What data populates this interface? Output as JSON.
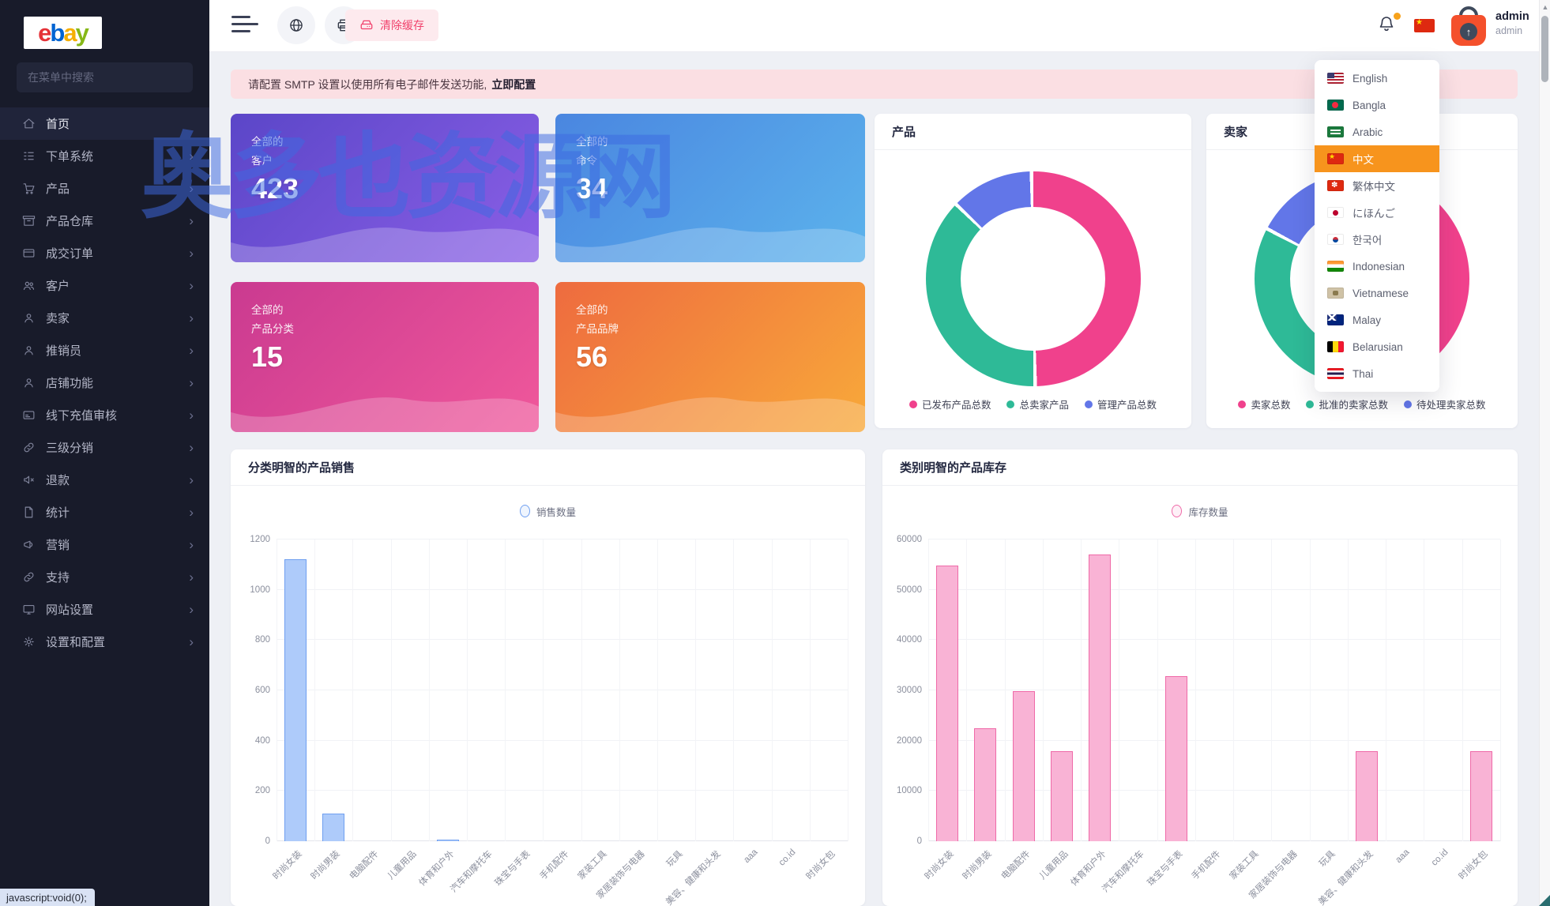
{
  "app": {
    "logo_text": "ebay",
    "watermark": "奥多也资源网",
    "status_bar": "javascript:void(0);"
  },
  "sidebar": {
    "search_placeholder": "在菜单中搜索",
    "items": [
      {
        "label": "首页",
        "icon": "home",
        "chevron": false,
        "active": true
      },
      {
        "label": "下单系统",
        "icon": "order-system",
        "chevron": true,
        "active": false
      },
      {
        "label": "产品",
        "icon": "products",
        "chevron": true,
        "active": false
      },
      {
        "label": "产品仓库",
        "icon": "warehouse",
        "chevron": true,
        "active": false
      },
      {
        "label": "成交订单",
        "icon": "orders",
        "chevron": true,
        "active": false
      },
      {
        "label": "客户",
        "icon": "customers",
        "chevron": true,
        "active": false
      },
      {
        "label": "卖家",
        "icon": "seller",
        "chevron": true,
        "active": false
      },
      {
        "label": "推销员",
        "icon": "promoter",
        "chevron": true,
        "active": false
      },
      {
        "label": "店铺功能",
        "icon": "shop",
        "chevron": true,
        "active": false
      },
      {
        "label": "线下充值审核",
        "icon": "offline-recharge",
        "chevron": true,
        "active": false
      },
      {
        "label": "三级分销",
        "icon": "distribution",
        "chevron": true,
        "active": false
      },
      {
        "label": "退款",
        "icon": "refund",
        "chevron": true,
        "active": false
      },
      {
        "label": "统计",
        "icon": "statistics",
        "chevron": true,
        "active": false
      },
      {
        "label": "营销",
        "icon": "marketing",
        "chevron": true,
        "active": false
      },
      {
        "label": "支持",
        "icon": "support",
        "chevron": true,
        "active": false
      },
      {
        "label": "网站设置",
        "icon": "website",
        "chevron": true,
        "active": false
      },
      {
        "label": "设置和配置",
        "icon": "settings",
        "chevron": true,
        "active": false
      }
    ]
  },
  "topbar": {
    "clear_cache_label": "清除缓存",
    "user": {
      "name": "admin",
      "role": "admin"
    }
  },
  "banner": {
    "text": "请配置 SMTP 设置以使用所有电子邮件发送功能,",
    "link": "立即配置"
  },
  "stat_cards": [
    {
      "prefix": "全部的",
      "label": "客户",
      "value": "423",
      "variant": "purple"
    },
    {
      "prefix": "全部的",
      "label": "命令",
      "value": "34",
      "variant": "blue"
    },
    {
      "prefix": "全部的",
      "label": "产品分类",
      "value": "15",
      "variant": "pink"
    },
    {
      "prefix": "全部的",
      "label": "产品品牌",
      "value": "56",
      "variant": "orange"
    }
  ],
  "language_menu": {
    "active_color": "#f7941d",
    "items": [
      {
        "label": "English",
        "flag": "us",
        "active": false
      },
      {
        "label": "Bangla",
        "flag": "bd",
        "active": false
      },
      {
        "label": "Arabic",
        "flag": "sa",
        "active": false
      },
      {
        "label": "中文",
        "flag": "cn",
        "active": true
      },
      {
        "label": "繁体中文",
        "flag": "hk",
        "active": false
      },
      {
        "label": "にほんご",
        "flag": "jp",
        "active": false
      },
      {
        "label": "한국어",
        "flag": "kr",
        "active": false
      },
      {
        "label": "Indonesian",
        "flag": "in",
        "active": false
      },
      {
        "label": "Vietnamese",
        "flag": "vn",
        "active": false
      },
      {
        "label": "Malay",
        "flag": "my",
        "active": false
      },
      {
        "label": "Belarusian",
        "flag": "be",
        "active": false
      },
      {
        "label": "Thai",
        "flag": "th",
        "active": false
      }
    ]
  },
  "chart_data": [
    {
      "type": "donut",
      "title": "产品",
      "legend_position": "bottom",
      "segments": [
        {
          "label": "已发布产品总数",
          "pct": 50,
          "color": "#f0418c"
        },
        {
          "label": "总卖家产品",
          "pct": 37.5,
          "color": "#2eba97"
        },
        {
          "label": "管理产品总数",
          "pct": 12.5,
          "color": "#6276e8"
        }
      ]
    },
    {
      "type": "donut",
      "title": "卖家",
      "legend_position": "bottom",
      "segments": [
        {
          "label": "卖家总数",
          "pct": 54,
          "color": "#f0418c"
        },
        {
          "label": "批准的卖家总数",
          "pct": 29,
          "color": "#2eba97"
        },
        {
          "label": "待处理卖家总数",
          "pct": 17,
          "color": "#6276e8"
        }
      ]
    },
    {
      "type": "bar",
      "title": "分类明智的产品销售",
      "legend": "销售数量",
      "bar_fill": "#aecbfa",
      "bar_border": "#6f9ff0",
      "categories": [
        "时尚女装",
        "时尚男装",
        "电脑配件",
        "儿童用品",
        "体育和户外",
        "汽车和摩托车",
        "珠宝与手表",
        "手机配件",
        "家装工具",
        "家居装饰与电器",
        "玩具",
        "美容、健康和头发",
        "aaa",
        "co.id",
        "时尚女包"
      ],
      "values": [
        1120,
        110,
        0,
        0,
        5,
        0,
        0,
        0,
        0,
        0,
        0,
        0,
        0,
        0,
        0
      ],
      "ylim": [
        0,
        1200
      ],
      "yticks": [
        0,
        200,
        400,
        600,
        800,
        1000,
        1200
      ],
      "grid": true
    },
    {
      "type": "bar",
      "title": "类别明智的产品库存",
      "legend": "库存数量",
      "bar_fill": "#f9b3d5",
      "bar_border": "#ef6aa8",
      "categories": [
        "时尚女装",
        "时尚男装",
        "电脑配件",
        "儿童用品",
        "体育和户外",
        "汽车和摩托车",
        "珠宝与手表",
        "手机配件",
        "家装工具",
        "家居装饰与电器",
        "玩具",
        "美容、健康和头发",
        "aaa",
        "co.id",
        "时尚女包"
      ],
      "values": [
        54800,
        22500,
        29800,
        17900,
        57000,
        0,
        32800,
        0,
        0,
        0,
        0,
        17900,
        0,
        0,
        17900
      ],
      "ylim": [
        0,
        60000
      ],
      "yticks": [
        0,
        10000,
        20000,
        30000,
        40000,
        50000,
        60000
      ],
      "grid": true
    }
  ]
}
